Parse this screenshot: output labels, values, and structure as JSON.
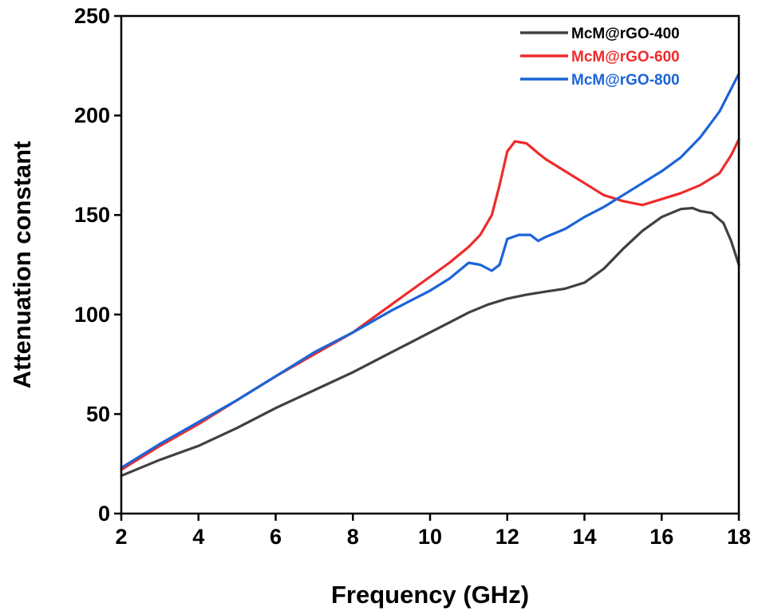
{
  "chart_data": {
    "type": "line",
    "xlabel": "Frequency (GHz)",
    "ylabel": "Attenuation constant",
    "xlim": [
      2,
      18
    ],
    "ylim": [
      0,
      250
    ],
    "xticks": [
      2,
      4,
      6,
      8,
      10,
      12,
      14,
      16,
      18
    ],
    "yticks": [
      0,
      50,
      100,
      150,
      200,
      250
    ],
    "grid": false,
    "legend": "top-right",
    "series": [
      {
        "name": "McM@rGO-400",
        "color": "#404040",
        "x": [
          2,
          3,
          4,
          5,
          6,
          7,
          8,
          9,
          10,
          10.5,
          11,
          11.5,
          12,
          12.5,
          13,
          13.5,
          14,
          14.5,
          15,
          15.5,
          16,
          16.5,
          16.8,
          17,
          17.3,
          17.6,
          17.8,
          18
        ],
        "y": [
          19,
          27,
          34,
          43,
          53,
          62,
          71,
          81,
          91,
          96,
          101,
          105,
          108,
          110,
          111.5,
          113,
          116,
          123,
          133,
          142,
          149,
          153,
          153.5,
          152,
          151,
          146,
          137,
          125
        ]
      },
      {
        "name": "McM@rGO-600",
        "color": "#ee2b2b",
        "x": [
          2,
          3,
          4,
          5,
          6,
          7,
          8,
          8.5,
          9,
          9.5,
          10,
          10.5,
          11,
          11.3,
          11.6,
          11.8,
          12,
          12.2,
          12.5,
          12.8,
          13,
          13.5,
          14,
          14.5,
          15,
          15.5,
          16,
          16.5,
          17,
          17.5,
          17.8,
          18
        ],
        "y": [
          22,
          34,
          45,
          57,
          69,
          80,
          91,
          98,
          105,
          112,
          119,
          126,
          134,
          140,
          150,
          165,
          182,
          187,
          186,
          181,
          178,
          172,
          166,
          160,
          157,
          155,
          158,
          161,
          165,
          171,
          180,
          188
        ]
      },
      {
        "name": "McM@rGO-800",
        "color": "#1c64d8",
        "x": [
          2,
          3,
          4,
          5,
          6,
          7,
          8,
          9,
          10,
          10.5,
          11,
          11.3,
          11.6,
          11.8,
          12,
          12.3,
          12.6,
          12.8,
          13,
          13.5,
          14,
          14.5,
          15,
          15.5,
          16,
          16.5,
          17,
          17.5,
          18
        ],
        "y": [
          23,
          35,
          46,
          57,
          69,
          81,
          91,
          102,
          112,
          118,
          126,
          125,
          122,
          125,
          138,
          140,
          140,
          137,
          139,
          143,
          149,
          154,
          160,
          166,
          172,
          179,
          189,
          202,
          221
        ]
      }
    ]
  }
}
